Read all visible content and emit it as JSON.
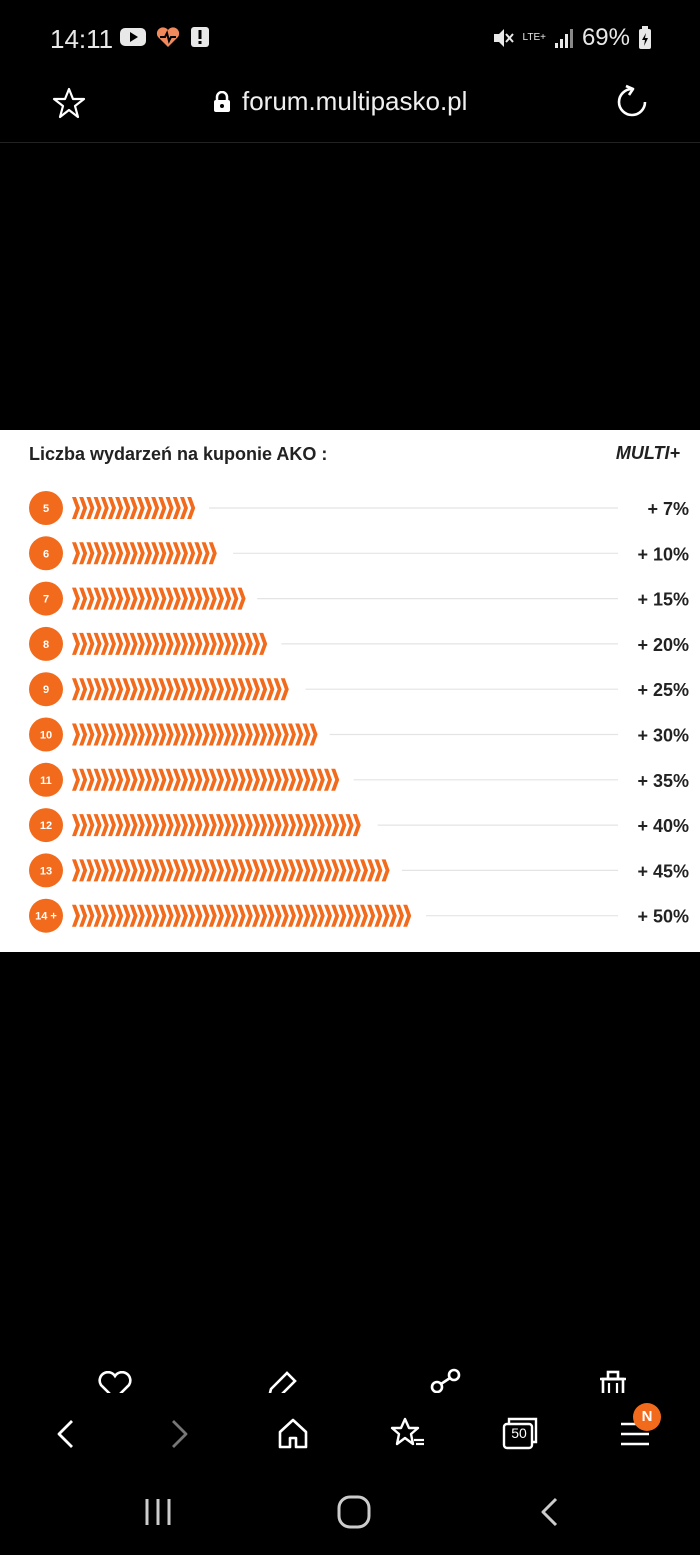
{
  "status_bar": {
    "time": "14:11",
    "battery": "69%",
    "network": "LTE+",
    "icons": [
      "youtube-icon",
      "health-icon",
      "alert-icon",
      "mute-icon",
      "signal-icon",
      "battery-icon"
    ]
  },
  "browser": {
    "url": "forum.multipasko.pl",
    "tab_count": "50",
    "menu_badge": "N"
  },
  "colors": {
    "accent": "#f26b1d",
    "background": "#000000",
    "panel": "#ffffff"
  },
  "chart_data": {
    "type": "bar",
    "title": "Liczba wydarzeń na kuponie AKO :",
    "series_label": "MULTI+",
    "categories": [
      "5",
      "6",
      "7",
      "8",
      "9",
      "10",
      "11",
      "12",
      "13",
      "14 +"
    ],
    "bonus_labels": [
      "+ 7%",
      "+ 10%",
      "+ 15%",
      "+ 20%",
      "+ 25%",
      "+ 30%",
      "+ 35%",
      "+ 40%",
      "+ 45%",
      "+ 50%"
    ],
    "values": [
      5,
      6,
      7,
      8,
      9,
      10,
      11,
      12,
      13,
      14
    ],
    "xlim": [
      0,
      14
    ]
  }
}
